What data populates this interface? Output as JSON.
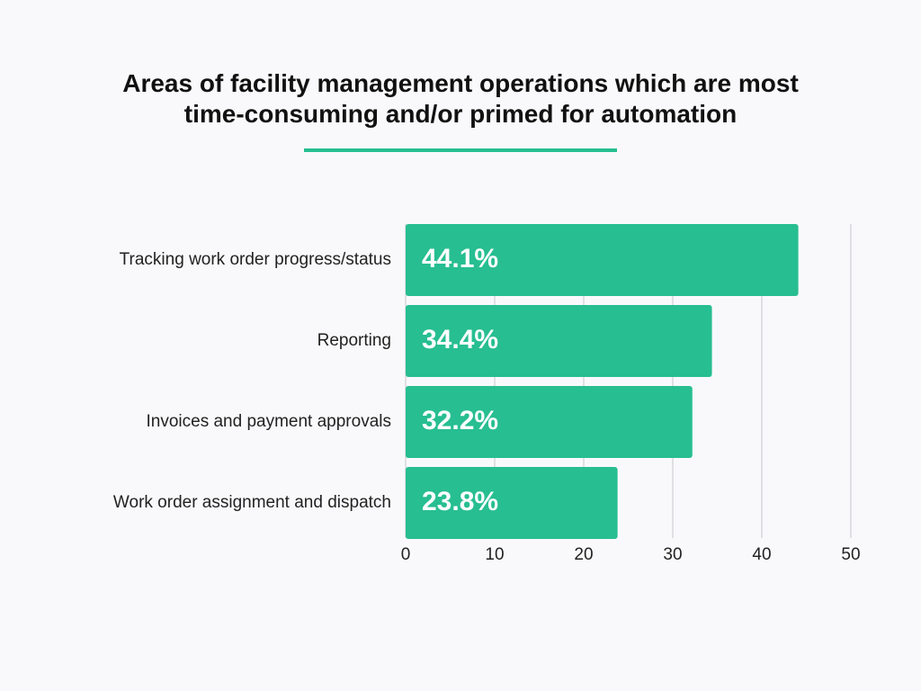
{
  "chart_data": {
    "type": "hbar",
    "title": "Areas of facility management operations which are most time-consuming and/or primed for automation",
    "categories": [
      "Tracking work order progress/status",
      "Reporting",
      "Invoices and payment approvals",
      "Work order assignment and dispatch"
    ],
    "values": [
      44.1,
      34.4,
      32.2,
      23.8
    ],
    "value_labels": [
      "44.1%",
      "34.4%",
      "32.2%",
      "23.8%"
    ],
    "color": "#27be91",
    "xlim": [
      0,
      50
    ],
    "xticks": [
      0,
      10,
      20,
      30,
      40,
      50
    ],
    "grid": true
  }
}
